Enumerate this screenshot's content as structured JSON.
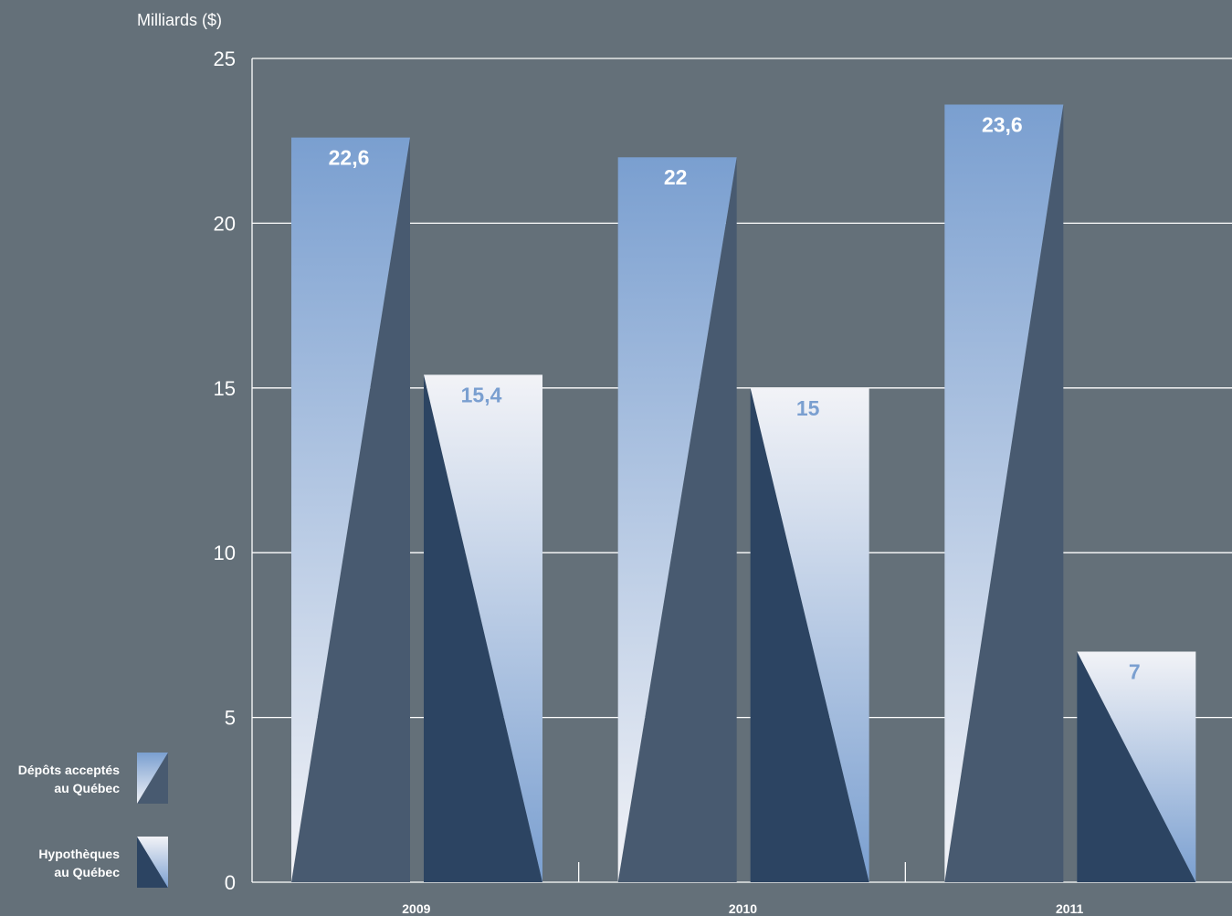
{
  "chart_data": {
    "type": "bar",
    "ylabel": "Milliards ($)",
    "ylim": [
      0,
      25
    ],
    "yticks": [
      "0",
      "5",
      "10",
      "15",
      "20",
      "25"
    ],
    "grid": true,
    "legend_position": "bottom-left",
    "categories": [
      "2009",
      "2010",
      "2011"
    ],
    "series": [
      {
        "name_lines": [
          "Dépôts acceptés",
          "au Québec"
        ],
        "values": [
          22.6,
          22,
          23.6
        ],
        "labels": [
          "22,6",
          "22",
          "23,6"
        ],
        "color_top": "#7a9fd0",
        "color_bottom": "#f2f3f7",
        "label_color": "#ffffff"
      },
      {
        "name_lines": [
          "Hypothèques",
          "au Québec"
        ],
        "values": [
          15.4,
          15,
          7
        ],
        "labels": [
          "15,4",
          "15",
          "7"
        ],
        "color_top": "#f2f3f7",
        "color_bottom": "#7a9fd0",
        "label_color": "#7a9fd0"
      }
    ],
    "shadow_colors": [
      "#485a70",
      "#2c4462"
    ],
    "background": "#647079",
    "gridline_color": "#ffffff"
  }
}
